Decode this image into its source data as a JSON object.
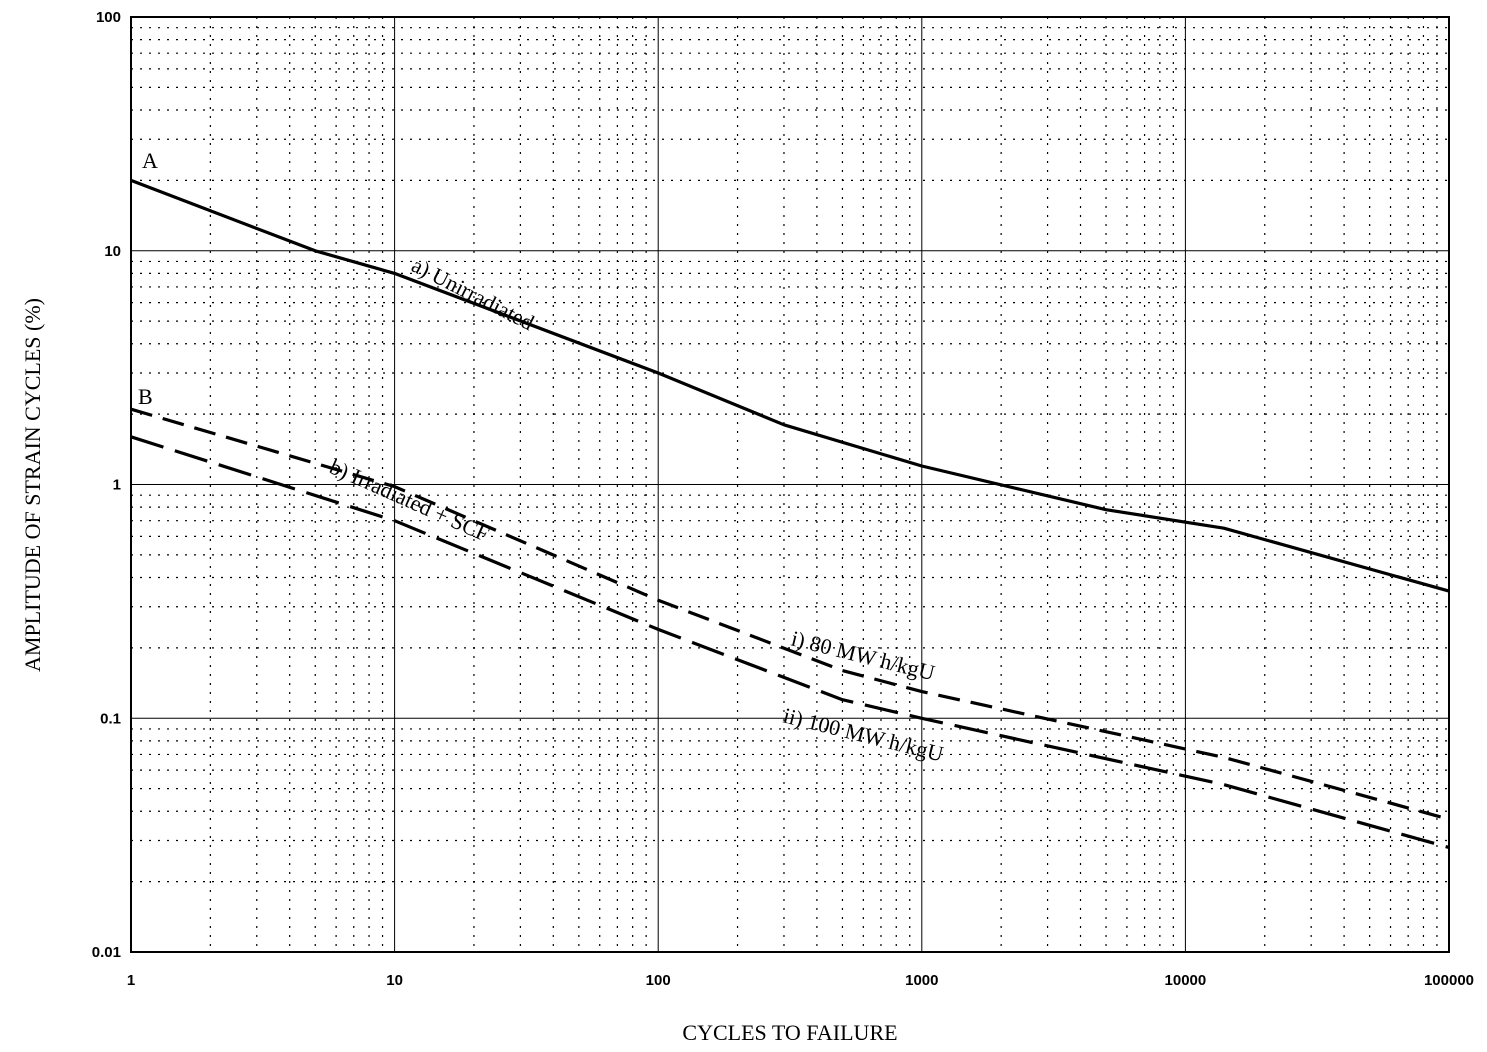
{
  "chart_data": {
    "type": "line",
    "xlabel": "CYCLES TO FAILURE",
    "ylabel": "AMPLITUDE OF STRAIN CYCLES (%)",
    "x_scale": "log",
    "y_scale": "log",
    "xlim": [
      1,
      100000
    ],
    "ylim": [
      0.01,
      100
    ],
    "x_ticks": [
      "1",
      "10",
      "100",
      "1000",
      "10000",
      "100000"
    ],
    "y_ticks": [
      "100",
      "10",
      "1",
      "0.1",
      "0.01"
    ],
    "grid": "major solid, minor dotted",
    "legend": "none",
    "series": [
      {
        "style": "solid",
        "points": [
          [
            1,
            20
          ],
          [
            5,
            10
          ],
          [
            10,
            8
          ],
          [
            100,
            3
          ],
          [
            300,
            1.8
          ],
          [
            1000,
            1.2
          ],
          [
            5000,
            0.78
          ],
          [
            14000,
            0.65
          ],
          [
            100000,
            0.35
          ]
        ]
      },
      {
        "style": "dashed",
        "points": [
          [
            1,
            2.1
          ],
          [
            10,
            0.98
          ],
          [
            100,
            0.32
          ],
          [
            500,
            0.16
          ],
          [
            1000,
            0.13
          ],
          [
            14000,
            0.068
          ],
          [
            100000,
            0.037
          ]
        ]
      },
      {
        "style": "long-dashed",
        "points": [
          [
            1,
            1.6
          ],
          [
            10,
            0.7
          ],
          [
            100,
            0.24
          ],
          [
            500,
            0.12
          ],
          [
            1000,
            0.1
          ],
          [
            14000,
            0.052
          ],
          [
            100000,
            0.028
          ]
        ]
      }
    ],
    "annotations": {
      "point_a": "A",
      "point_b": "B",
      "curve_a": "a)  Unirradiated",
      "curve_b": "b)  Irradiated + SCF",
      "curve_i": "i)   80 MW h/kgU",
      "curve_ii": "ii)  100 MW h/kgU"
    }
  }
}
